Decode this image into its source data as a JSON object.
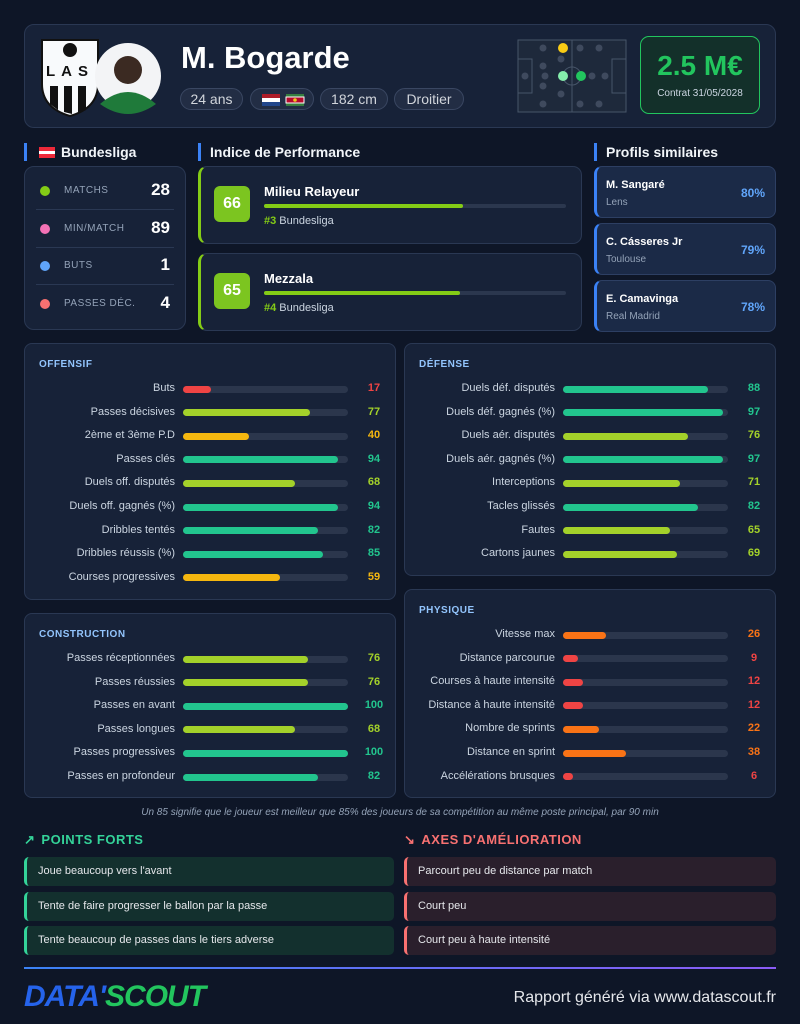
{
  "header": {
    "club_logo_text": "LAS",
    "name": "M. Bogarde",
    "age": "24 ans",
    "height": "182 cm",
    "foot": "Droitier",
    "market_value": "2.5 M€",
    "contract": "Contrat 31/05/2028"
  },
  "league": {
    "name": "Bundesliga",
    "stats": [
      {
        "label": "MATCHS",
        "value": 28
      },
      {
        "label": "MIN/MATCH",
        "value": 89
      },
      {
        "label": "BUTS",
        "value": 1
      },
      {
        "label": "PASSES DÉC.",
        "value": 4
      }
    ]
  },
  "percentile_range": [
    0,
    100
  ],
  "performance": {
    "title": "Indice de Performance",
    "profiles": [
      {
        "score": 66,
        "role": "Milieu Relayeur",
        "rank": "#3",
        "league": "Bundesliga"
      },
      {
        "score": 65,
        "role": "Mezzala",
        "rank": "#4",
        "league": "Bundesliga"
      }
    ]
  },
  "similar": {
    "title": "Profils similaires",
    "players": [
      {
        "name": "M. Sangaré",
        "club": "Lens",
        "similarity": "80%"
      },
      {
        "name": "C. Cásseres Jr",
        "club": "Toulouse",
        "similarity": "79%"
      },
      {
        "name": "E. Camavinga",
        "club": "Real Madrid",
        "similarity": "78%"
      }
    ]
  },
  "sections": [
    {
      "title": "OFFENSIF",
      "metrics": [
        {
          "label": "Buts",
          "value": 17
        },
        {
          "label": "Passes décisives",
          "value": 77
        },
        {
          "label": "2ème et 3ème P.D",
          "value": 40
        },
        {
          "label": "Passes clés",
          "value": 94
        },
        {
          "label": "Duels off. disputés",
          "value": 68
        },
        {
          "label": "Duels off. gagnés (%)",
          "value": 94
        },
        {
          "label": "Dribbles tentés",
          "value": 82
        },
        {
          "label": "Dribbles réussis (%)",
          "value": 85
        },
        {
          "label": "Courses progressives",
          "value": 59
        }
      ]
    },
    {
      "title": "DÉFENSE",
      "metrics": [
        {
          "label": "Duels déf. disputés",
          "value": 88
        },
        {
          "label": "Duels déf. gagnés (%)",
          "value": 97
        },
        {
          "label": "Duels aér. disputés",
          "value": 76
        },
        {
          "label": "Duels aér. gagnés (%)",
          "value": 97
        },
        {
          "label": "Interceptions",
          "value": 71
        },
        {
          "label": "Tacles glissés",
          "value": 82
        },
        {
          "label": "Fautes",
          "value": 65
        },
        {
          "label": "Cartons jaunes",
          "value": 69
        }
      ]
    },
    {
      "title": "CONSTRUCTION",
      "metrics": [
        {
          "label": "Passes réceptionnées",
          "value": 76
        },
        {
          "label": "Passes réussies",
          "value": 76
        },
        {
          "label": "Passes en avant",
          "value": 100
        },
        {
          "label": "Passes longues",
          "value": 68
        },
        {
          "label": "Passes progressives",
          "value": 100
        },
        {
          "label": "Passes en profondeur",
          "value": 82
        }
      ]
    },
    {
      "title": "PHYSIQUE",
      "metrics": [
        {
          "label": "Vitesse max",
          "value": 26
        },
        {
          "label": "Distance parcourue",
          "value": 9
        },
        {
          "label": "Courses à haute intensité",
          "value": 12
        },
        {
          "label": "Distance à haute intensité",
          "value": 12
        },
        {
          "label": "Nombre de sprints",
          "value": 22
        },
        {
          "label": "Distance en sprint",
          "value": 38
        },
        {
          "label": "Accélérations brusques",
          "value": 6
        }
      ]
    }
  ],
  "note": "Un 85 signifie que le joueur est meilleur que 85% des joueurs de sa compétition au même poste principal, par 90 min",
  "strengths": {
    "title": "POINTS FORTS",
    "items": [
      "Joue beaucoup vers l'avant",
      "Tente de faire progresser le ballon par la passe",
      "Tente beaucoup de passes dans le tiers adverse"
    ]
  },
  "improvements": {
    "title": "AXES D'AMÉLIORATION",
    "items": [
      "Parcourt peu de distance par match",
      "Court peu",
      "Court peu à haute intensité"
    ]
  },
  "footer": {
    "brand_parts": [
      "DATA'",
      "SCOUT"
    ],
    "credit": "Rapport généré via www.datascout.fr"
  }
}
